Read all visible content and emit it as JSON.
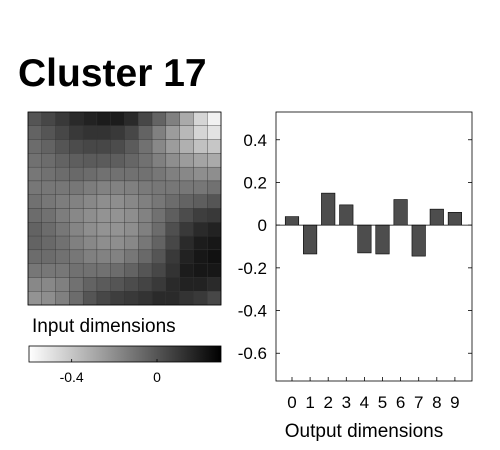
{
  "title": "Cluster 17",
  "chart_data": [
    {
      "type": "heatmap",
      "xlabel": "Input dimensions",
      "rows": 14,
      "cols": 14,
      "colorbar": {
        "range": [
          -0.6,
          0.3
        ],
        "ticks": [
          -0.4,
          0
        ],
        "tick_labels": [
          "-0.4",
          "0"
        ],
        "low_color": "#ffffff",
        "high_color": "#000000"
      },
      "values": [
        [
          0.0,
          0.05,
          0.1,
          0.15,
          0.18,
          0.2,
          0.2,
          0.15,
          0.05,
          -0.05,
          -0.15,
          -0.3,
          -0.45,
          -0.55
        ],
        [
          -0.05,
          0.0,
          0.05,
          0.1,
          0.12,
          0.12,
          0.1,
          0.05,
          -0.05,
          -0.15,
          -0.25,
          -0.35,
          -0.45,
          -0.5
        ],
        [
          -0.08,
          -0.05,
          0.0,
          0.03,
          0.05,
          0.05,
          0.03,
          -0.02,
          -0.1,
          -0.18,
          -0.25,
          -0.32,
          -0.38,
          -0.4
        ],
        [
          -0.1,
          -0.08,
          -0.05,
          -0.03,
          -0.02,
          -0.02,
          -0.03,
          -0.06,
          -0.1,
          -0.15,
          -0.2,
          -0.25,
          -0.28,
          -0.3
        ],
        [
          -0.12,
          -0.1,
          -0.08,
          -0.07,
          -0.08,
          -0.1,
          -0.1,
          -0.1,
          -0.1,
          -0.12,
          -0.15,
          -0.18,
          -0.2,
          -0.2
        ],
        [
          -0.12,
          -0.12,
          -0.12,
          -0.12,
          -0.14,
          -0.16,
          -0.16,
          -0.15,
          -0.13,
          -0.12,
          -0.12,
          -0.12,
          -0.12,
          -0.1
        ],
        [
          -0.1,
          -0.12,
          -0.14,
          -0.16,
          -0.18,
          -0.2,
          -0.2,
          -0.18,
          -0.15,
          -0.12,
          -0.08,
          -0.05,
          -0.03,
          0.0
        ],
        [
          -0.08,
          -0.1,
          -0.14,
          -0.18,
          -0.2,
          -0.22,
          -0.22,
          -0.2,
          -0.16,
          -0.1,
          -0.03,
          0.03,
          0.08,
          0.1
        ],
        [
          -0.05,
          -0.08,
          -0.12,
          -0.17,
          -0.2,
          -0.22,
          -0.22,
          -0.2,
          -0.15,
          -0.08,
          0.02,
          0.1,
          0.15,
          0.18
        ],
        [
          -0.05,
          -0.07,
          -0.1,
          -0.15,
          -0.18,
          -0.2,
          -0.2,
          -0.18,
          -0.12,
          -0.05,
          0.05,
          0.15,
          0.2,
          0.22
        ],
        [
          -0.08,
          -0.08,
          -0.1,
          -0.12,
          -0.15,
          -0.16,
          -0.16,
          -0.12,
          -0.07,
          0.0,
          0.1,
          0.18,
          0.22,
          0.24
        ],
        [
          -0.12,
          -0.12,
          -0.12,
          -0.1,
          -0.1,
          -0.1,
          -0.08,
          -0.05,
          0.0,
          0.05,
          0.12,
          0.2,
          0.22,
          0.22
        ],
        [
          -0.18,
          -0.18,
          -0.15,
          -0.1,
          -0.05,
          -0.02,
          0.0,
          0.03,
          0.06,
          0.1,
          0.15,
          0.18,
          0.18,
          0.15
        ],
        [
          -0.22,
          -0.2,
          -0.15,
          -0.08,
          0.0,
          0.05,
          0.08,
          0.1,
          0.12,
          0.15,
          0.15,
          0.12,
          0.1,
          0.05
        ]
      ]
    },
    {
      "type": "bar",
      "xlabel": "Output dimensions",
      "ylabel": "",
      "categories": [
        "0",
        "1",
        "2",
        "3",
        "4",
        "5",
        "6",
        "7",
        "8",
        "9"
      ],
      "values": [
        0.04,
        -0.135,
        0.15,
        0.095,
        -0.13,
        -0.135,
        0.12,
        -0.145,
        0.075,
        0.06
      ],
      "ylim": [
        -0.73,
        0.53
      ],
      "yticks": [
        0.4,
        0.2,
        0,
        -0.2,
        -0.4,
        -0.6
      ],
      "ytick_labels": [
        "0.4",
        "0.2",
        "0",
        "-0.2",
        "-0.4",
        "-0.6"
      ],
      "bar_color": "#4d4d4d",
      "grid": false
    }
  ]
}
